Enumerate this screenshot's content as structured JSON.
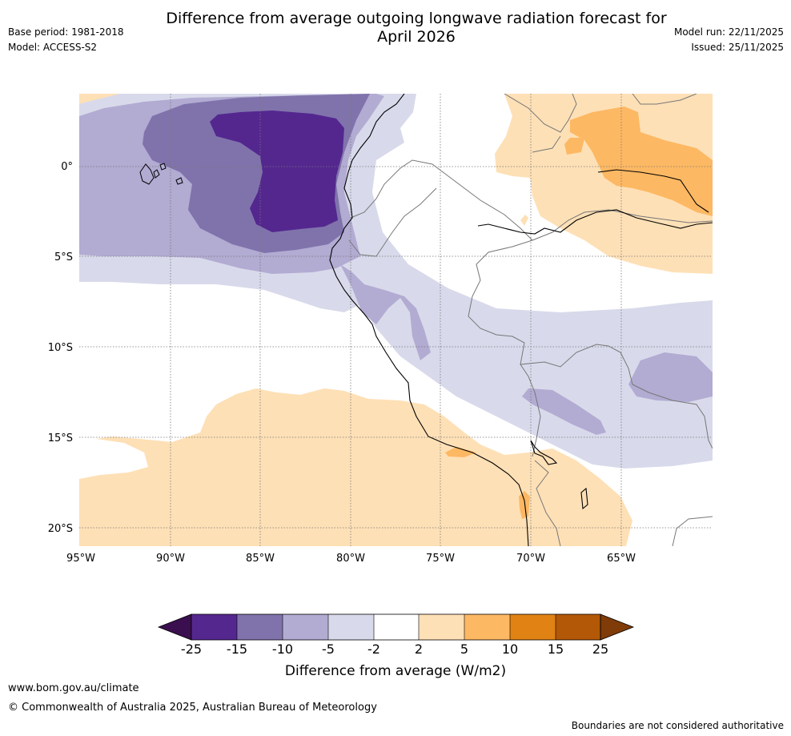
{
  "header": {
    "title_line1": "Difference from average outgoing longwave radiation forecast for",
    "title_line2": "April 2026",
    "base_period": "Base period: 1981-2018",
    "model": "Model: ACCESS-S2",
    "model_run": "Model run: 22/11/2025",
    "issued": "Issued: 25/11/2025"
  },
  "map": {
    "lon_labels": [
      "95°W",
      "90°W",
      "85°W",
      "80°W",
      "75°W",
      "70°W",
      "65°W"
    ],
    "lat_labels": [
      "0°",
      "5°S",
      "10°S",
      "15°S",
      "20°S"
    ],
    "region": "Ecuador, Peru, western Brazil, Bolivia and adjacent eastern Pacific"
  },
  "colorbar": {
    "ticks": [
      "-25",
      "-15",
      "-10",
      "-5",
      "-2",
      "2",
      "5",
      "10",
      "15",
      "25"
    ],
    "label": "Difference from average (W/m2)",
    "colors": {
      "below_min": "#3b0f4f",
      "c1": "#54278f",
      "c2": "#8073ac",
      "c3": "#b2abd2",
      "c4": "#d8daeb",
      "c5": "#ffffff",
      "c6": "#fee0b6",
      "c7": "#fdb863",
      "c8": "#e08214",
      "c9": "#b35806",
      "above_max": "#7f3b08"
    }
  },
  "footer": {
    "website": "www.bom.gov.au/climate",
    "copyright": "© Commonwealth of Australia 2025, Australian Bureau of Meteorology",
    "disclaimer": "Boundaries are not considered authoritative"
  }
}
